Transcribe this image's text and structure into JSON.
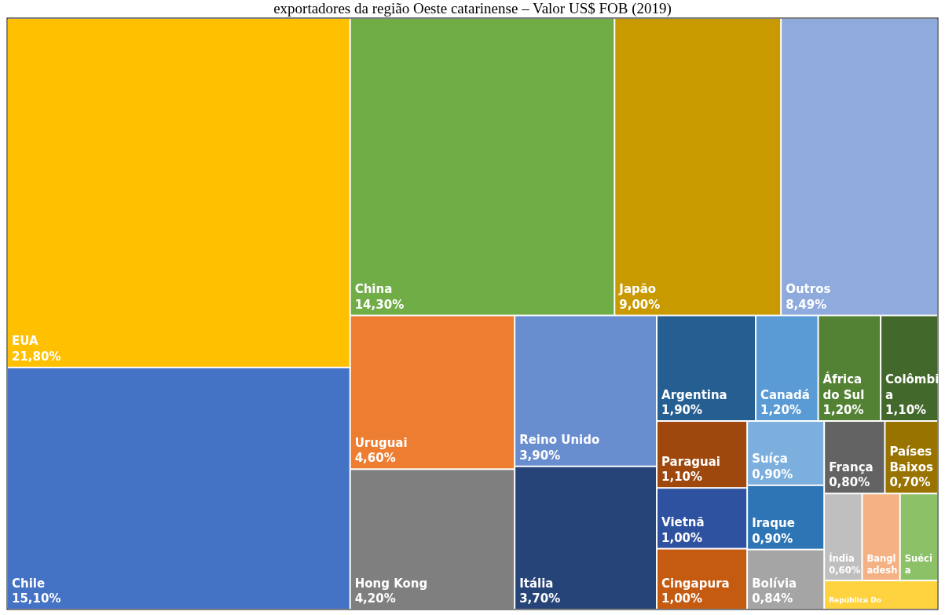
{
  "chart_data": {
    "type": "other",
    "title": "exportadores da região Oeste catarinense – Valor US$ FOB (2019)",
    "categories": [
      "EUA",
      "Chile",
      "China",
      "Japão",
      "Outros",
      "Uruguai",
      "Hong Kong",
      "Reino Unido",
      "Itália",
      "Argentina",
      "Canadá",
      "África do Sul",
      "Colômbia",
      "Paraguai",
      "Vietnã",
      "Cingapura",
      "Suíça",
      "Iraque",
      "Bolívia",
      "França",
      "Países Baixos",
      "Índia",
      "Bangladesh",
      "Suécia",
      "República Do"
    ],
    "values": [
      21.8,
      15.1,
      14.3,
      9.0,
      8.49,
      4.6,
      4.2,
      3.9,
      3.7,
      1.9,
      1.2,
      1.2,
      1.1,
      1.1,
      1.0,
      1.0,
      0.9,
      0.9,
      0.84,
      0.8,
      0.7,
      0.6,
      null,
      null,
      null
    ],
    "value_labels": [
      "21,80%",
      "15,10%",
      "14,30%",
      "9,00%",
      "8,49%",
      "4,60%",
      "4,20%",
      "3,90%",
      "3,70%",
      "1,90%",
      "1,20%",
      "1,20%",
      "1,10%",
      "1,10%",
      "1,00%",
      "1,00%",
      "0,90%",
      "0,90%",
      "0,84%",
      "0,80%",
      "0,70%",
      "0,60%",
      null,
      null,
      null
    ],
    "colors": [
      "#ffc000",
      "#4472c4",
      "#70ad47",
      "#c99a00",
      "#8faadc",
      "#ed7d31",
      "#7f7f7f",
      "#698ed0",
      "#264478",
      "#255e91",
      "#5b9bd5",
      "#548235",
      "#43682b",
      "#9e480e",
      "#2f52a0",
      "#c55a11",
      "#7cafdd",
      "#2e75b6",
      "#a5a5a5",
      "#636363",
      "#997300",
      "#bfbfbf",
      "#f4b183",
      "#8cc168",
      "#ffd23f"
    ]
  }
}
